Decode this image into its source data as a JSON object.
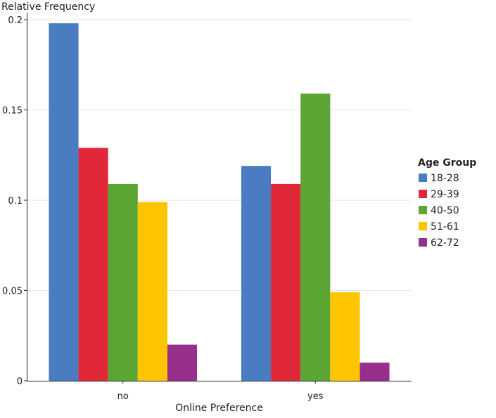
{
  "chart_data": {
    "type": "bar",
    "xlabel": "Online Preference",
    "ylabel": "Relative Frequency",
    "categories": [
      "no",
      "yes"
    ],
    "ylim": [
      0,
      0.2
    ],
    "yticks": [
      {
        "value": 0,
        "label": "0"
      },
      {
        "value": 0.05,
        "label": "0.05"
      },
      {
        "value": 0.1,
        "label": "0.1"
      },
      {
        "value": 0.15,
        "label": "0.15"
      },
      {
        "value": 0.2,
        "label": "0.2"
      }
    ],
    "grid": true,
    "legend": {
      "title": "Age Group",
      "position": "right"
    },
    "series": [
      {
        "name": "18-28",
        "color": "#4a7cc1",
        "values": [
          0.198,
          0.119
        ]
      },
      {
        "name": "29-39",
        "color": "#e12839",
        "values": [
          0.129,
          0.109
        ]
      },
      {
        "name": "40-50",
        "color": "#5ba535",
        "values": [
          0.109,
          0.159
        ]
      },
      {
        "name": "51-61",
        "color": "#fdc500",
        "values": [
          0.099,
          0.049
        ]
      },
      {
        "name": "62-72",
        "color": "#952f89",
        "values": [
          0.02,
          0.01
        ]
      }
    ]
  }
}
